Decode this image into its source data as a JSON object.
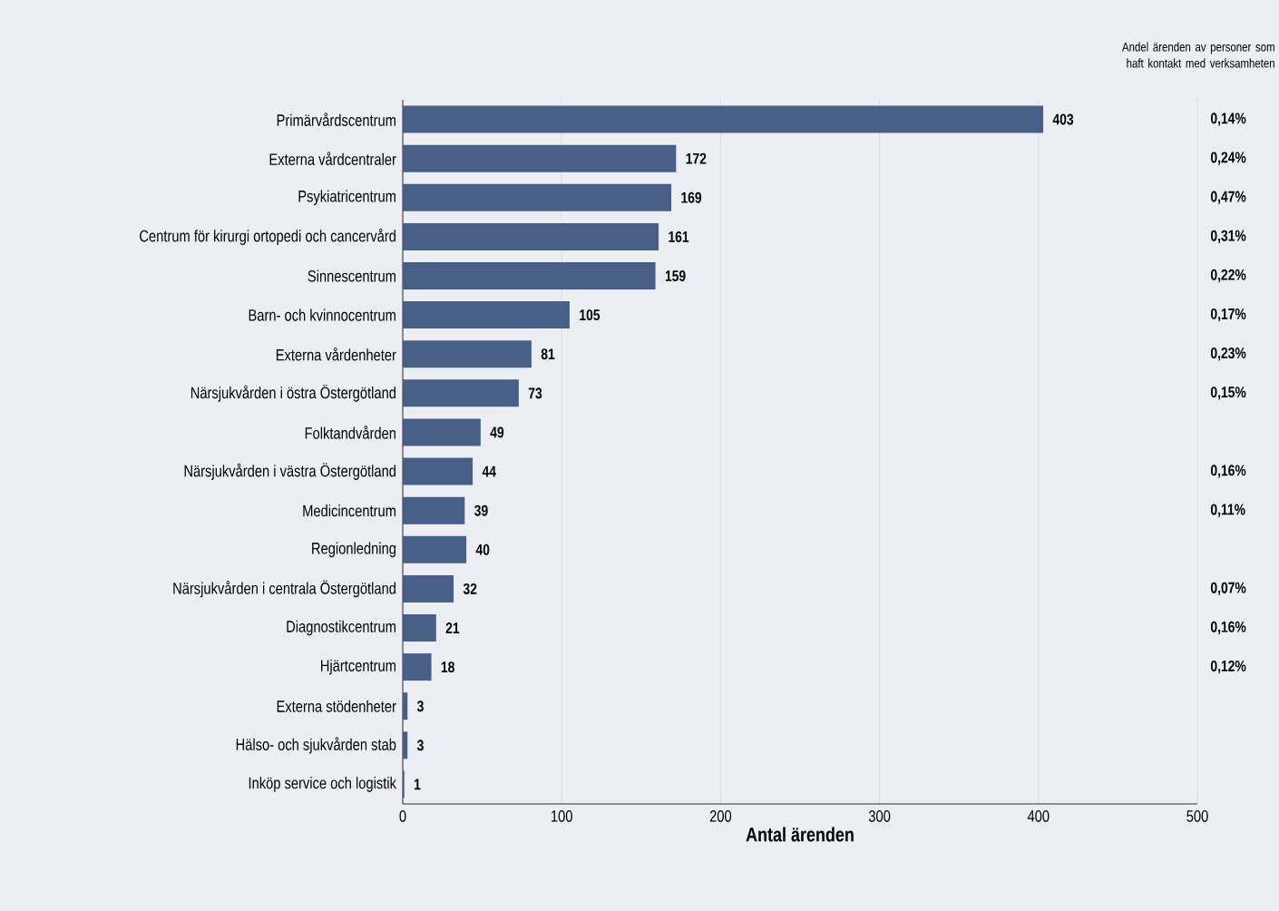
{
  "chart_data": {
    "type": "bar",
    "orientation": "horizontal",
    "xlabel": "Antal ärenden",
    "categories": [
      "Primärvårdscentrum",
      "Externa vårdcentraler",
      "Psykiatricentrum",
      "Centrum för kirurgi ortopedi och cancervård",
      "Sinnescentrum",
      "Barn- och kvinnocentrum",
      "Externa vårdenheter",
      "Närsjukvården i östra Östergötland",
      "Folktandvården",
      "Närsjukvården i västra Östergötland",
      "Medicincentrum",
      "Regionledning",
      "Närsjukvården i centrala Östergötland",
      "Diagnostikcentrum",
      "Hjärtcentrum",
      "Externa stödenheter",
      "Hälso- och sjukvården stab",
      "Inköp service och logistik"
    ],
    "values": [
      403,
      172,
      169,
      161,
      159,
      105,
      81,
      73,
      49,
      44,
      39,
      40,
      32,
      21,
      18,
      3,
      3,
      1
    ],
    "color": "#4a5f87",
    "data_labels": true,
    "xlim": [
      0,
      500
    ],
    "xticks": [
      0,
      100,
      200,
      300,
      400,
      500
    ],
    "grid": "x",
    "annotations": [
      "Andel ärenden av personer som haft kontakt med verksamheten",
      "0,14%",
      "0,24%",
      "0,47%",
      "0,31%",
      "0,22%",
      "0,17%",
      "0,23%",
      "0,15%",
      "0,16%",
      "0,11%",
      "0,07%",
      "0,16%",
      "0,12%"
    ]
  }
}
